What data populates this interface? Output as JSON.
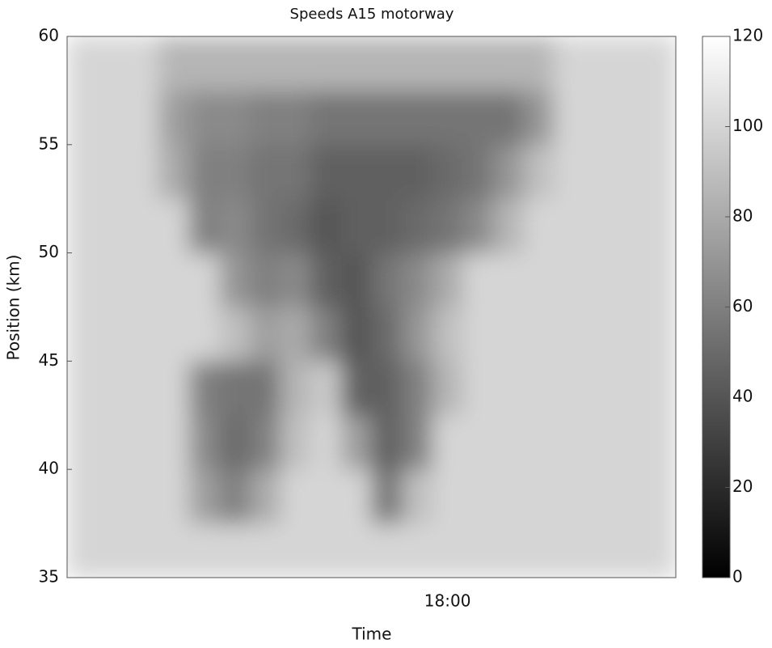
{
  "chart_data": {
    "type": "heatmap",
    "title": "Speeds A15 motorway",
    "xlabel": "Time",
    "ylabel": "Position (km)",
    "categories": [
      null,
      null,
      null,
      null,
      null,
      null,
      null,
      null,
      null,
      null,
      null,
      null,
      "18:00",
      null,
      null,
      null,
      null,
      null,
      null,
      null
    ],
    "ybins": [
      35,
      37.5,
      40,
      42.5,
      45,
      47.5,
      50,
      52.5,
      55,
      57.5,
      60
    ],
    "ylim": [
      35,
      60
    ],
    "yticks": [
      35,
      40,
      45,
      50,
      55,
      60
    ],
    "values": [
      [
        100,
        100,
        100,
        100,
        100,
        100,
        100,
        100,
        100,
        100,
        100,
        100,
        100,
        100,
        100,
        100,
        100,
        100,
        100,
        100
      ],
      [
        100,
        100,
        100,
        100,
        75,
        60,
        80,
        100,
        100,
        100,
        55,
        90,
        100,
        100,
        100,
        100,
        100,
        100,
        100,
        100
      ],
      [
        100,
        100,
        100,
        100,
        65,
        50,
        60,
        90,
        100,
        75,
        45,
        60,
        100,
        100,
        100,
        100,
        100,
        100,
        100,
        100
      ],
      [
        100,
        100,
        100,
        100,
        60,
        55,
        55,
        85,
        95,
        45,
        45,
        60,
        85,
        100,
        100,
        100,
        100,
        100,
        100,
        100
      ],
      [
        100,
        100,
        100,
        100,
        100,
        90,
        75,
        80,
        60,
        40,
        50,
        70,
        90,
        100,
        100,
        100,
        100,
        100,
        100,
        100
      ],
      [
        100,
        100,
        100,
        100,
        100,
        70,
        60,
        65,
        45,
        40,
        55,
        65,
        80,
        100,
        100,
        100,
        100,
        100,
        100,
        100
      ],
      [
        100,
        100,
        100,
        100,
        60,
        65,
        55,
        50,
        40,
        45,
        45,
        50,
        55,
        65,
        85,
        100,
        100,
        100,
        100,
        100
      ],
      [
        100,
        100,
        100,
        80,
        60,
        60,
        55,
        55,
        45,
        45,
        45,
        45,
        50,
        55,
        70,
        90,
        100,
        100,
        100,
        100
      ],
      [
        100,
        100,
        100,
        75,
        65,
        65,
        60,
        60,
        55,
        55,
        55,
        55,
        55,
        55,
        55,
        70,
        100,
        100,
        100,
        100
      ],
      [
        100,
        100,
        100,
        85,
        85,
        85,
        85,
        85,
        85,
        85,
        85,
        85,
        85,
        85,
        85,
        85,
        100,
        100,
        100,
        100
      ]
    ],
    "clim": [
      0,
      120
    ],
    "cticks": [
      0,
      20,
      40,
      60,
      80,
      100,
      120
    ],
    "colormap": [
      "#000000",
      "#ffffff"
    ]
  }
}
